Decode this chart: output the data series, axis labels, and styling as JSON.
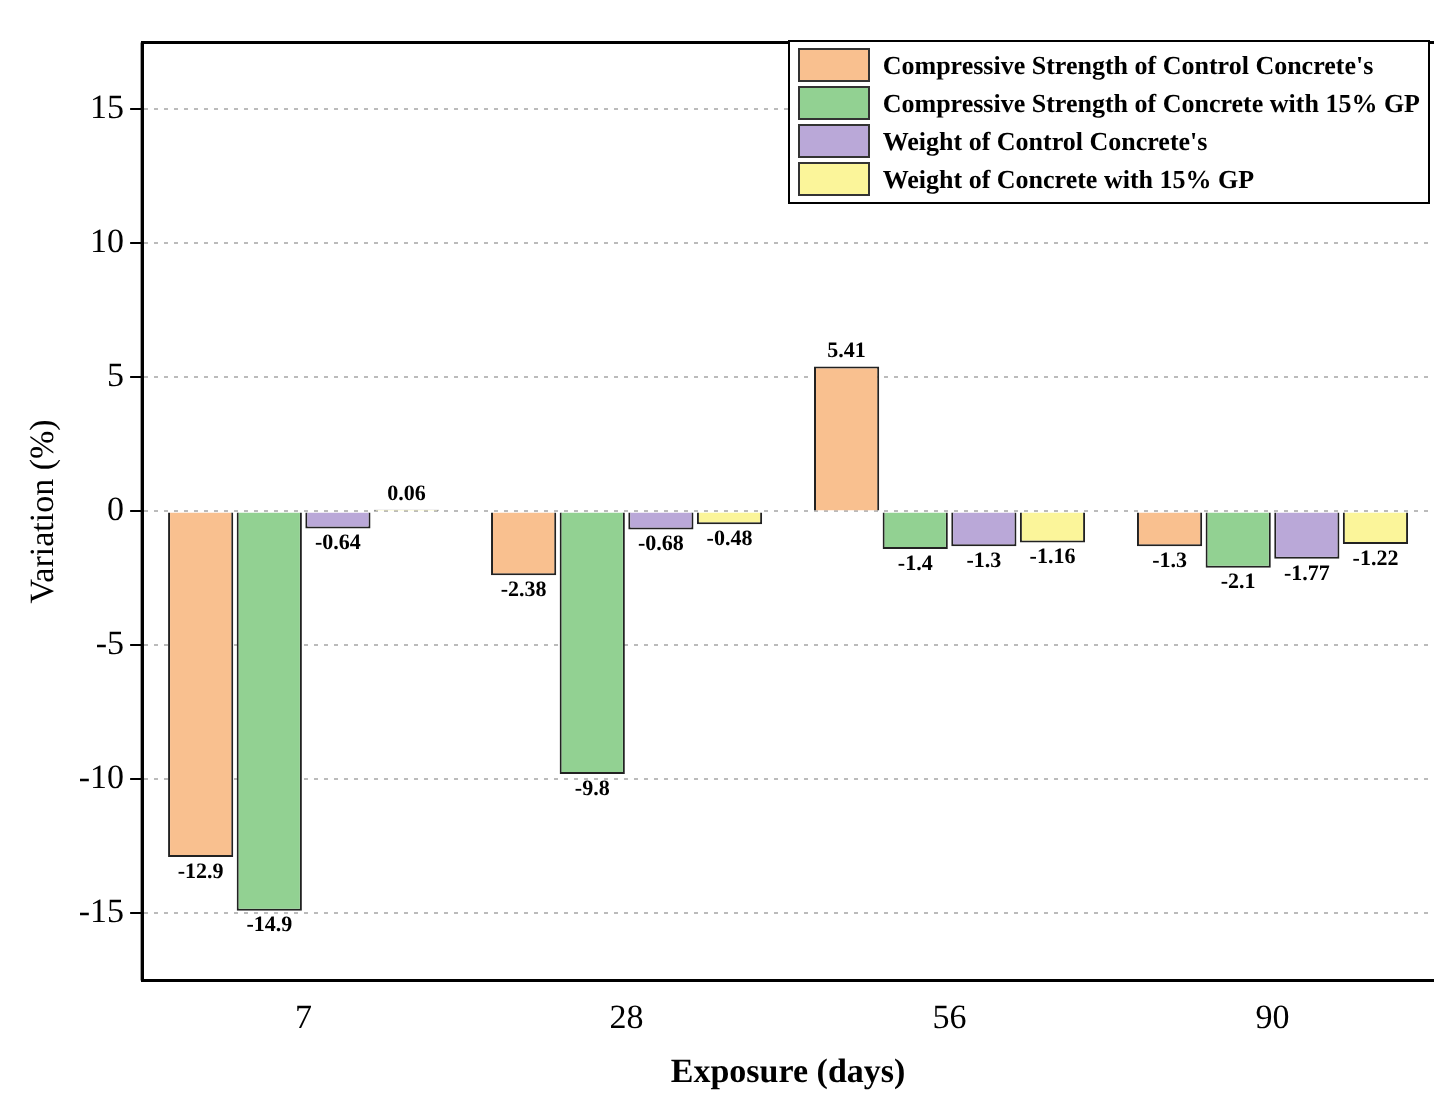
{
  "chart_data": {
    "type": "bar",
    "xlabel": "Exposure (days)",
    "ylabel": "Variation (%)",
    "categories": [
      "7",
      "28",
      "56",
      "90"
    ],
    "series": [
      {
        "name": "Compressive Strength of Control Concrete's",
        "color": "#f9c08f",
        "values": [
          -12.9,
          -2.38,
          5.41,
          -1.3
        ]
      },
      {
        "name": "Compressive Strength of Concrete with 15% GP",
        "color": "#92d192",
        "values": [
          -14.9,
          -9.8,
          -1.4,
          -2.1
        ]
      },
      {
        "name": "Weight of Control Concrete's",
        "color": "#baa8d8",
        "values": [
          -0.64,
          -0.68,
          -1.3,
          -1.77
        ]
      },
      {
        "name": "Weight of Concrete with 15% GP",
        "color": "#fbf59a",
        "values": [
          0.06,
          -0.48,
          -1.16,
          -1.22
        ]
      }
    ],
    "ylim": [
      -17.5,
      17.5
    ],
    "yticks": [
      -15,
      -10,
      -5,
      0,
      5,
      10,
      15
    ],
    "grid": "y",
    "legend": "top right",
    "data_labels": true
  }
}
